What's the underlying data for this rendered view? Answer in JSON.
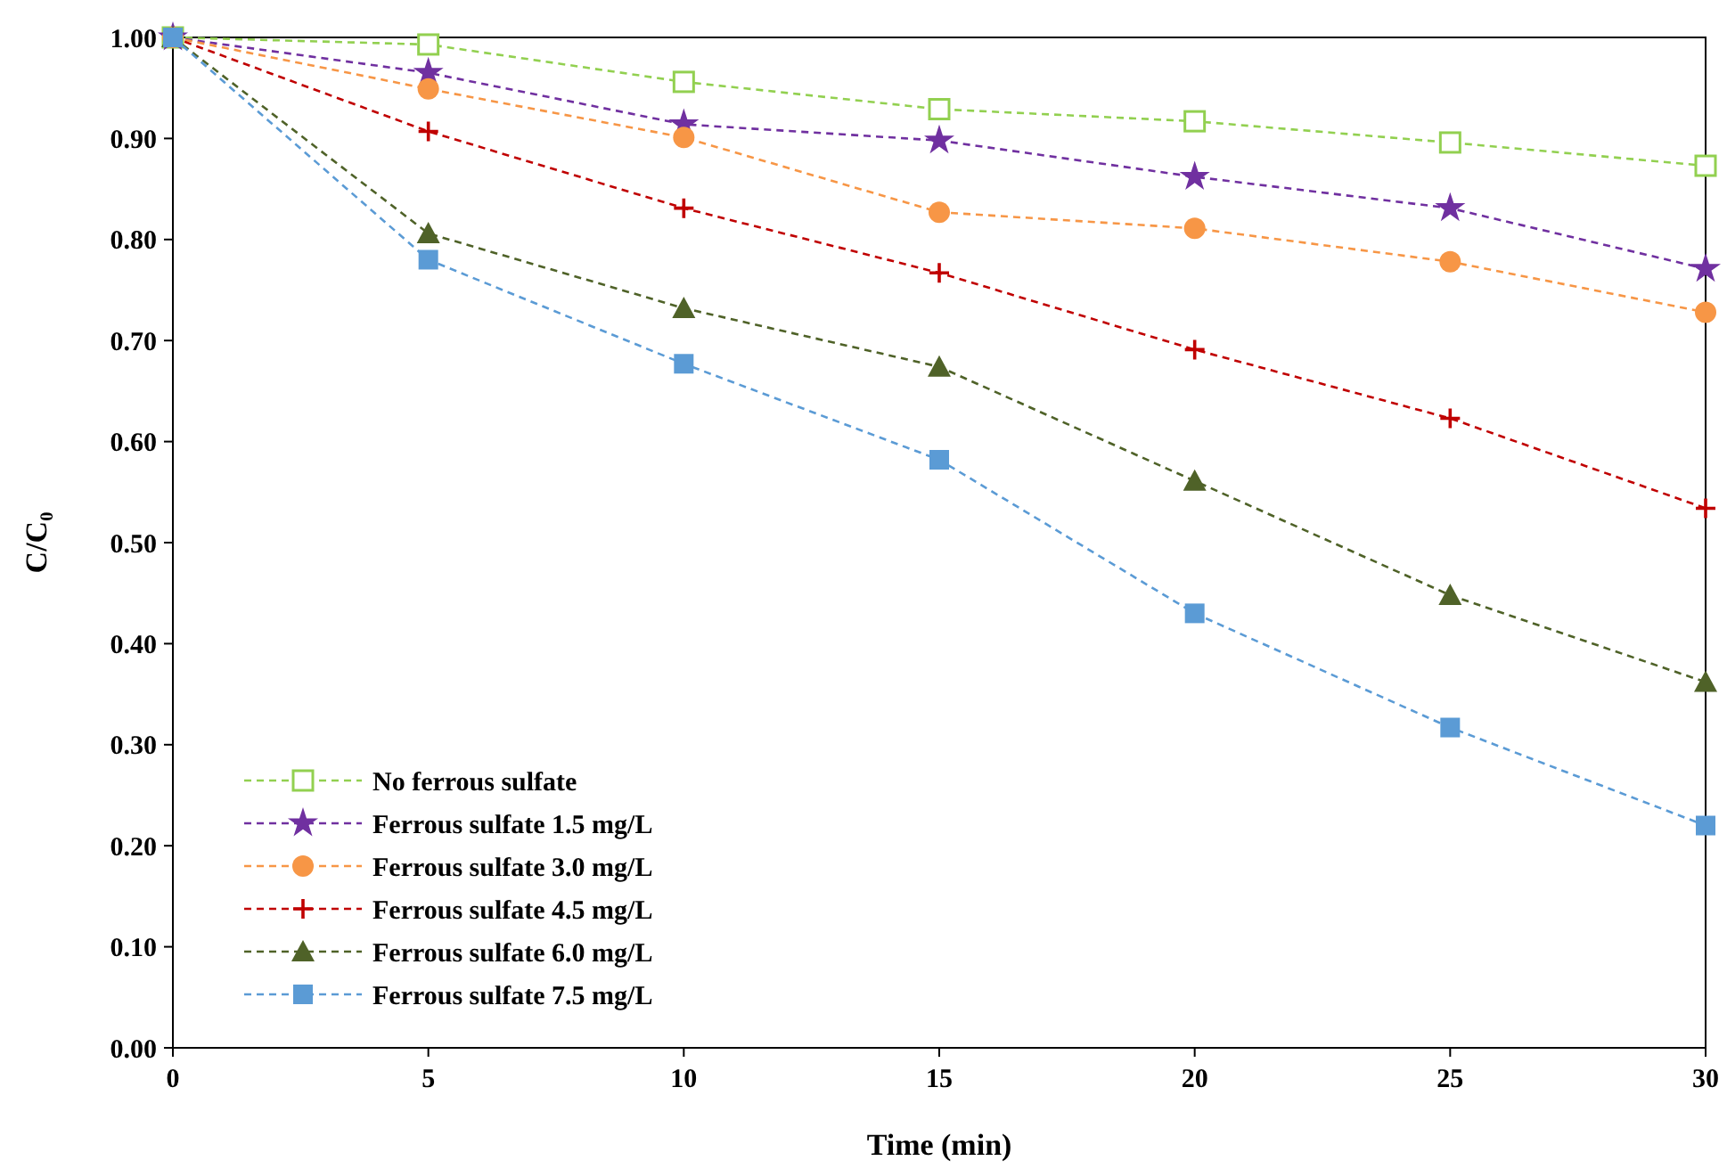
{
  "chart_data": {
    "type": "line",
    "xlabel": "Time (min)",
    "ylabel": "C/C₀",
    "x": [
      0,
      5,
      10,
      15,
      20,
      25,
      30
    ],
    "xlim": [
      0,
      30
    ],
    "xticks": [
      0,
      5,
      10,
      15,
      20,
      25,
      30
    ],
    "ylim": [
      0,
      1
    ],
    "yticks": [
      {
        "value": 0,
        "label": "0.00"
      },
      {
        "value": 0.1,
        "label": "0.10"
      },
      {
        "value": 0.2,
        "label": "0.20"
      },
      {
        "value": 0.3,
        "label": "0.30"
      },
      {
        "value": 0.4,
        "label": "0.40"
      },
      {
        "value": 0.5,
        "label": "0.50"
      },
      {
        "value": 0.6,
        "label": "0.60"
      },
      {
        "value": 0.7,
        "label": "0.70"
      },
      {
        "value": 0.8,
        "label": "0.80"
      },
      {
        "value": 0.9,
        "label": "0.90"
      },
      {
        "value": 1,
        "label": "1.00"
      }
    ],
    "grid": false,
    "legend": "bottom left",
    "line_style": "dashed",
    "series": [
      {
        "name": "No ferrous sulfate",
        "color": "#92d050",
        "marker": "square",
        "values": [
          1.0,
          0.993,
          0.956,
          0.929,
          0.917,
          0.896,
          0.873
        ]
      },
      {
        "name": "Ferrous sulfate 1.5 mg/L",
        "color": "#7030a0",
        "marker": "star",
        "values": [
          1.0,
          0.965,
          0.914,
          0.898,
          0.862,
          0.831,
          0.771
        ]
      },
      {
        "name": "Ferrous sulfate 3.0 mg/L",
        "color": "#f79646",
        "marker": "circle",
        "values": [
          1.0,
          0.949,
          0.901,
          0.827,
          0.811,
          0.778,
          0.728
        ]
      },
      {
        "name": "Ferrous sulfate 4.5 mg/L",
        "color": "#c00000",
        "marker": "cross",
        "values": [
          1.0,
          0.907,
          0.831,
          0.767,
          0.691,
          0.623,
          0.534
        ]
      },
      {
        "name": "Ferrous sulfate 6.0 mg/L",
        "color": "#4f6228",
        "marker": "triangle",
        "values": [
          1.0,
          0.806,
          0.732,
          0.674,
          0.561,
          0.448,
          0.362
        ]
      },
      {
        "name": "Ferrous sulfate 7.5 mg/L",
        "color": "#5b9bd5",
        "marker": "square",
        "values": [
          1.0,
          0.78,
          0.677,
          0.582,
          0.43,
          0.317,
          0.22
        ]
      }
    ]
  }
}
